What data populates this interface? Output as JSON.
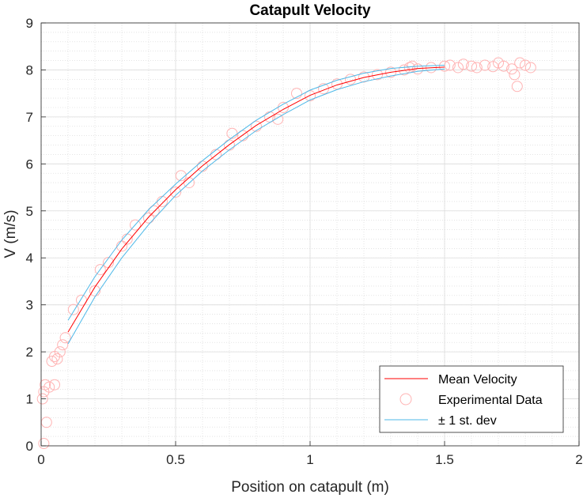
{
  "chart_data": {
    "type": "line",
    "title": "Catapult Velocity",
    "xlabel": "Position on catapult (m)",
    "ylabel": "V (m/s)",
    "xlim": [
      0,
      2
    ],
    "ylim": [
      0,
      9
    ],
    "xticks": [
      "0",
      "0.5",
      "1",
      "1.5",
      "2"
    ],
    "yticks": [
      "0",
      "1",
      "2",
      "3",
      "4",
      "5",
      "6",
      "7",
      "8",
      "9"
    ],
    "grid": true,
    "minor_grid": true,
    "legend_position": "bottom-right",
    "legend": [
      "Mean Velocity",
      "Experimental Data",
      "± 1 st. dev"
    ],
    "colors": {
      "mean": "#ff0000",
      "data": "#ffb3b3",
      "std": "#4db8e8"
    },
    "x": [
      0.1,
      0.2,
      0.3,
      0.4,
      0.5,
      0.6,
      0.7,
      0.8,
      0.9,
      1.0,
      1.1,
      1.2,
      1.3,
      1.4,
      1.5
    ],
    "series": [
      {
        "name": "Mean Velocity",
        "values": [
          2.42,
          3.38,
          4.19,
          4.87,
          5.45,
          5.96,
          6.41,
          6.82,
          7.16,
          7.46,
          7.68,
          7.84,
          7.95,
          8.03,
          8.06
        ]
      },
      {
        "name": "± 1 st. dev",
        "role": "upper",
        "values": [
          2.67,
          3.6,
          4.38,
          5.03,
          5.57,
          6.07,
          6.52,
          6.93,
          7.27,
          7.57,
          7.78,
          7.93,
          8.03,
          8.08,
          8.1
        ]
      },
      {
        "name": "± 1 st. dev",
        "role": "lower",
        "values": [
          2.17,
          3.17,
          4.0,
          4.71,
          5.33,
          5.85,
          6.3,
          6.71,
          7.05,
          7.36,
          7.58,
          7.75,
          7.87,
          7.97,
          8.02
        ]
      }
    ],
    "scatter": {
      "name": "Experimental Data",
      "points": [
        [
          0.01,
          0.05
        ],
        [
          0.02,
          0.5
        ],
        [
          0.005,
          1.0
        ],
        [
          0.015,
          1.3
        ],
        [
          0.03,
          1.25
        ],
        [
          0.01,
          1.15
        ],
        [
          0.04,
          1.8
        ],
        [
          0.05,
          1.9
        ],
        [
          0.06,
          1.85
        ],
        [
          0.07,
          2.0
        ],
        [
          0.08,
          2.15
        ],
        [
          0.05,
          1.3
        ],
        [
          0.09,
          2.3
        ],
        [
          0.12,
          2.9
        ],
        [
          0.15,
          3.1
        ],
        [
          0.2,
          3.3
        ],
        [
          0.22,
          3.75
        ],
        [
          0.25,
          3.9
        ],
        [
          0.3,
          4.25
        ],
        [
          0.32,
          4.4
        ],
        [
          0.35,
          4.7
        ],
        [
          0.4,
          4.85
        ],
        [
          0.42,
          5.0
        ],
        [
          0.45,
          5.2
        ],
        [
          0.5,
          5.4
        ],
        [
          0.52,
          5.75
        ],
        [
          0.55,
          5.6
        ],
        [
          0.6,
          5.95
        ],
        [
          0.65,
          6.2
        ],
        [
          0.7,
          6.4
        ],
        [
          0.71,
          6.65
        ],
        [
          0.75,
          6.6
        ],
        [
          0.8,
          6.8
        ],
        [
          0.85,
          7.0
        ],
        [
          0.88,
          6.95
        ],
        [
          0.9,
          7.2
        ],
        [
          0.95,
          7.5
        ],
        [
          1.0,
          7.45
        ],
        [
          1.05,
          7.6
        ],
        [
          1.1,
          7.7
        ],
        [
          1.15,
          7.8
        ],
        [
          1.2,
          7.85
        ],
        [
          1.25,
          7.9
        ],
        [
          1.3,
          7.95
        ],
        [
          1.35,
          8.0
        ],
        [
          1.37,
          8.05
        ],
        [
          1.38,
          8.08
        ],
        [
          1.4,
          8.02
        ],
        [
          1.45,
          8.05
        ],
        [
          1.5,
          8.08
        ],
        [
          1.52,
          8.1
        ],
        [
          1.55,
          8.05
        ],
        [
          1.57,
          8.12
        ],
        [
          1.6,
          8.08
        ],
        [
          1.62,
          8.05
        ],
        [
          1.65,
          8.1
        ],
        [
          1.68,
          8.07
        ],
        [
          1.7,
          8.15
        ],
        [
          1.72,
          8.08
        ],
        [
          1.75,
          8.02
        ],
        [
          1.77,
          7.65
        ],
        [
          1.78,
          8.15
        ],
        [
          1.8,
          8.1
        ],
        [
          1.82,
          8.05
        ],
        [
          1.76,
          7.9
        ]
      ]
    }
  }
}
